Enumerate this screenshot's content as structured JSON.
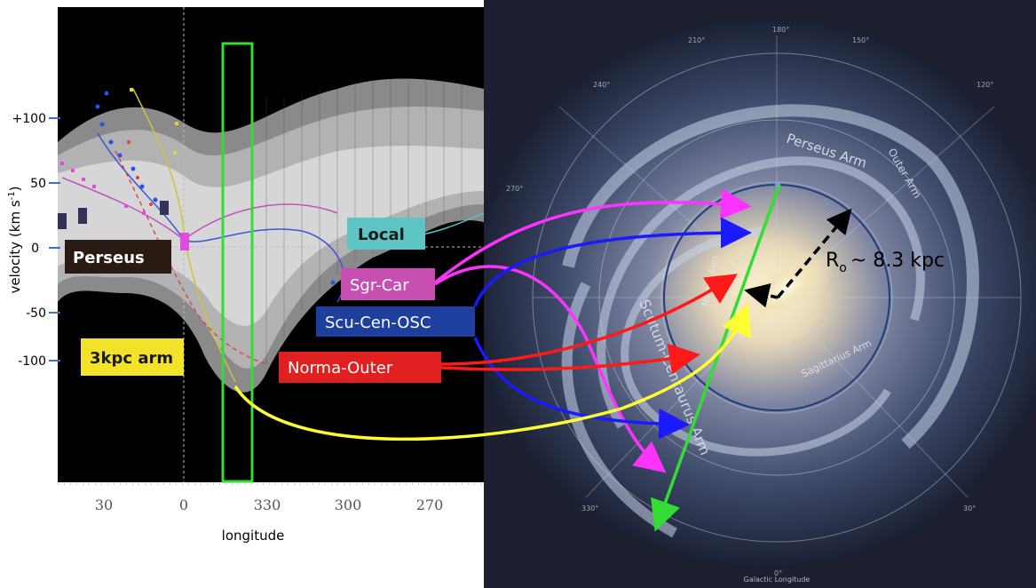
{
  "lv_plot": {
    "y_axis_label": "velocity (km s",
    "y_axis_label_sup": "-1",
    "y_axis_label_end": ")",
    "y_ticks": [
      "+100",
      "50",
      "0",
      "-50",
      "-100"
    ],
    "x_ticks": [
      "30",
      "0",
      "330",
      "300",
      "270"
    ],
    "x_axis_label": "longitude"
  },
  "arm_labels": {
    "perseus": "Perseus",
    "local": "Local",
    "sgr_car": "Sgr-Car",
    "scu_cen_osc": "Scu-Cen-OSC",
    "norma_outer": "Norma-Outer",
    "three_kpc": "3kpc arm"
  },
  "galaxy_map": {
    "r0_label_main": "R",
    "r0_label_sub": "o",
    "r0_label_value": "~ 8.3 kpc",
    "arm_names": {
      "perseus_arm": "Perseus Arm",
      "outer_arm": "Outer Arm",
      "sagittarius_arm": "Sagittarius Arm",
      "scutum_centaurus_arm": "Scutum-Centaurus Arm",
      "norma_arm": "Norma Arm"
    },
    "galactic_longitude_label": "Galactic Longitude",
    "longitude_ticks": [
      "180°",
      "150°",
      "210°",
      "120°",
      "240°",
      "270°",
      "0°",
      "30°",
      "330°"
    ]
  },
  "colors": {
    "magenta": "#ff33ff",
    "blue": "#1a1aff",
    "red": "#ff1a1a",
    "yellow": "#ffff33",
    "green": "#33dd33",
    "orbit": "#1f3f7a",
    "local_box": "#5ec5c5",
    "sgr_box": "#c84fb2",
    "scu_box": "#1f3f9f",
    "norma_box": "#e02020",
    "three_kpc_box": "#f2e32a",
    "perseus_box": "#2a1a14"
  }
}
